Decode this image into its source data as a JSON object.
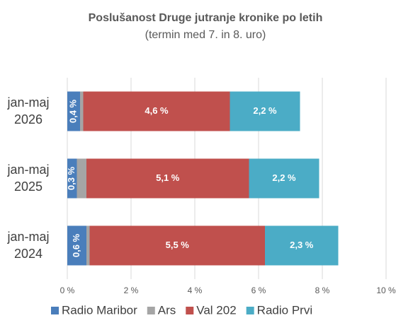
{
  "chart_data": {
    "type": "stacked-bar-horizontal",
    "title": "Poslušanost Druge jutranje kronike po letih",
    "subtitle": "(termin med 7. in 8. uro)",
    "categories": [
      "jan-maj 2026",
      "jan-maj 2025",
      "jan-maj 2024"
    ],
    "series": [
      {
        "name": "Radio Maribor",
        "color": "#4a7ebb",
        "values": [
          0.4,
          0.3,
          0.6
        ],
        "value_labels": [
          "0,4 %",
          "0,3 %",
          "0,6 %"
        ],
        "label_rotated": true
      },
      {
        "name": "Ars",
        "color": "#a5a5a5",
        "values": [
          0.1,
          0.3,
          0.1
        ]
      },
      {
        "name": "Val 202",
        "color": "#c0504d",
        "values": [
          4.6,
          5.1,
          5.5
        ],
        "value_labels": [
          "4,6 %",
          "5,1 %",
          "5,5 %"
        ]
      },
      {
        "name": "Radio Prvi",
        "color": "#4bacc6",
        "values": [
          2.2,
          2.2,
          2.3
        ],
        "value_labels": [
          "2,2 %",
          "2,2 %",
          "2,3 %"
        ]
      }
    ],
    "xlim": [
      0,
      10
    ],
    "xticks": [
      {
        "value": 0,
        "label": "0 %"
      },
      {
        "value": 2,
        "label": "2 %"
      },
      {
        "value": 4,
        "label": "4 %"
      },
      {
        "value": 6,
        "label": "6 %"
      },
      {
        "value": 8,
        "label": "8 %"
      },
      {
        "value": 10,
        "label": "10 %"
      }
    ],
    "grid": true,
    "legend": "bottom"
  }
}
